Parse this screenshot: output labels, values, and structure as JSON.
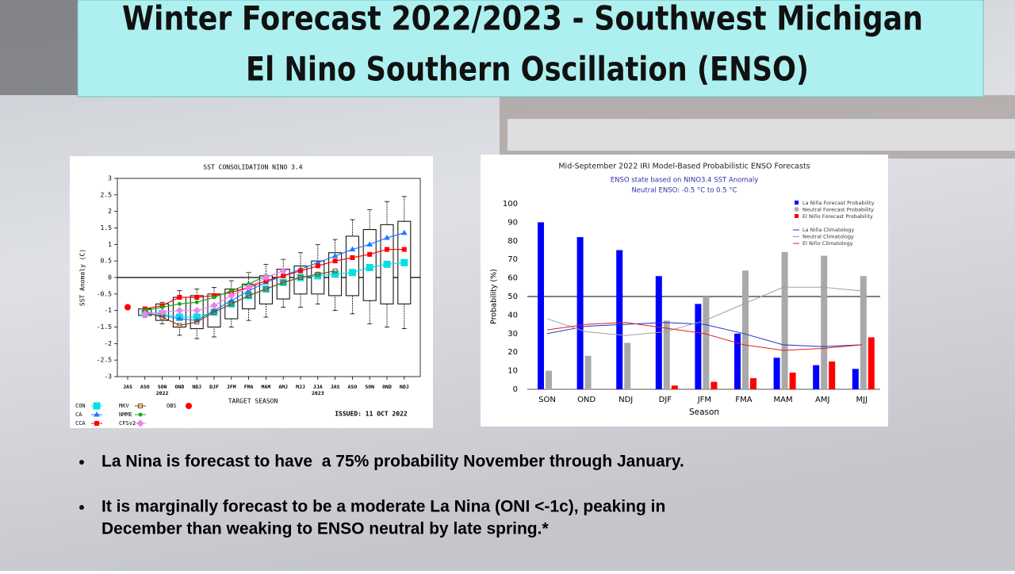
{
  "header": {
    "title_lines": [
      "Winter Forecast 2022/2023 - Southwest Michigan",
      "El Nino Southern Oscillation (ENSO)"
    ]
  },
  "chart_data": [
    {
      "type": "box",
      "title": "SST CONSOLIDATION NINO 3.4",
      "y_label": "SST Anomaly (C)",
      "x_label": "TARGET SEASON",
      "note": "ISSUED: 11 OCT 2022",
      "categories": [
        "JAS",
        "ASO",
        "SON",
        "OND",
        "NDJ",
        "DJF",
        "JFM",
        "FMA",
        "MAM",
        "AMJ",
        "MJJ",
        "JJA",
        "JAS",
        "ASO",
        "SON",
        "OND",
        "NDJ"
      ],
      "year_labels": [
        null,
        null,
        "2022",
        null,
        null,
        null,
        null,
        null,
        null,
        null,
        null,
        "2023",
        null,
        null,
        null,
        null,
        null
      ],
      "ylim": [
        -3,
        3
      ],
      "yticks": [
        -3,
        -2.5,
        -2,
        -1.5,
        -1,
        -0.5,
        0,
        0.5,
        1,
        1.5,
        2,
        2.5,
        3
      ],
      "reference_line": 0,
      "boxes": [
        null,
        {
          "min": -1.2,
          "q1": -1.15,
          "q3": -0.95,
          "max": -0.9
        },
        {
          "min": -1.4,
          "q1": -1.3,
          "q3": -0.8,
          "max": -0.75
        },
        {
          "min": -1.75,
          "q1": -1.5,
          "q3": -0.6,
          "max": -0.4
        },
        {
          "min": -1.85,
          "q1": -1.55,
          "q3": -0.55,
          "max": -0.35
        },
        {
          "min": -1.8,
          "q1": -1.5,
          "q3": -0.5,
          "max": -0.3
        },
        {
          "min": -1.5,
          "q1": -1.25,
          "q3": -0.35,
          "max": -0.1
        },
        {
          "min": -1.3,
          "q1": -0.95,
          "q3": -0.2,
          "max": 0.15
        },
        {
          "min": -1.2,
          "q1": -0.8,
          "q3": 0.05,
          "max": 0.4
        },
        {
          "min": -0.9,
          "q1": -0.65,
          "q3": 0.25,
          "max": 0.55
        },
        {
          "min": -0.9,
          "q1": -0.5,
          "q3": 0.35,
          "max": 0.75
        },
        {
          "min": -0.8,
          "q1": -0.5,
          "q3": 0.5,
          "max": 1.0
        },
        {
          "min": -1.0,
          "q1": -0.55,
          "q3": 0.75,
          "max": 1.15
        },
        {
          "min": -1.1,
          "q1": -0.55,
          "q3": 1.25,
          "max": 1.75
        },
        {
          "min": -1.4,
          "q1": -0.7,
          "q3": 1.45,
          "max": 2.05
        },
        {
          "min": -1.5,
          "q1": -0.8,
          "q3": 1.6,
          "max": 2.3
        },
        {
          "min": -1.55,
          "q1": -0.8,
          "q3": 1.7,
          "max": 2.45
        }
      ],
      "series": [
        {
          "name": "CON",
          "color": "#00e0e0",
          "marker": "bigsquare",
          "values": [
            null,
            -1.05,
            -1.1,
            -1.2,
            -1.2,
            -1.05,
            -0.8,
            -0.55,
            -0.35,
            -0.15,
            0.0,
            0.05,
            0.1,
            0.15,
            0.3,
            0.4,
            0.45
          ]
        },
        {
          "name": "CA",
          "color": "#1e78ff",
          "marker": "triangle",
          "values": [
            null,
            -1.1,
            -1.15,
            -1.25,
            -1.3,
            -1.0,
            -0.7,
            -0.4,
            -0.15,
            0.05,
            0.25,
            0.45,
            0.65,
            0.85,
            1.0,
            1.2,
            1.35
          ]
        },
        {
          "name": "CCA",
          "color": "#ff0000",
          "marker": "square",
          "values": [
            null,
            -0.95,
            -0.85,
            -0.6,
            -0.6,
            -0.55,
            -0.45,
            -0.3,
            -0.1,
            0.05,
            0.2,
            0.35,
            0.5,
            0.6,
            0.7,
            0.85,
            0.85
          ]
        },
        {
          "name": "MKV",
          "color": "#8b4513",
          "marker": "opensquare",
          "values": [
            null,
            -1.05,
            -1.2,
            -1.45,
            -1.35,
            -1.05,
            -0.8,
            -0.55,
            -0.35,
            -0.15,
            0.0,
            0.1,
            0.2,
            null,
            null,
            null,
            null
          ]
        },
        {
          "name": "NMME",
          "color": "#10b010",
          "marker": "circle",
          "values": [
            null,
            -1.0,
            -0.9,
            -0.8,
            -0.75,
            -0.6,
            -0.4,
            -0.2,
            0.05,
            null,
            null,
            null,
            null,
            null,
            null,
            null,
            null
          ]
        },
        {
          "name": "CFSv2",
          "color": "#ee82ee",
          "marker": "diamond",
          "values": [
            null,
            -1.1,
            -1.05,
            -1.0,
            -1.0,
            -0.85,
            -0.55,
            -0.3,
            0.0,
            0.2,
            null,
            null,
            null,
            null,
            null,
            null,
            null
          ]
        },
        {
          "name": "OBS",
          "color": "#ff0000",
          "marker": "dot",
          "values": [
            -0.9,
            null,
            null,
            null,
            null,
            null,
            null,
            null,
            null,
            null,
            null,
            null,
            null,
            null,
            null,
            null,
            null
          ]
        }
      ]
    },
    {
      "type": "bar",
      "title": "Mid-September 2022 IRI Model-Based Probabilistic ENSO Forecasts",
      "subtitle_lines": [
        "ENSO state based on NINO3.4 SST Anomaly",
        "Neutral ENSO: -0.5 °C to 0.5 °C"
      ],
      "x_label": "Season",
      "y_label": "Probability (%)",
      "categories": [
        "SON",
        "OND",
        "NDJ",
        "DJF",
        "JFM",
        "FMA",
        "MAM",
        "AMJ",
        "MJJ"
      ],
      "ylim": [
        0,
        100
      ],
      "yticks": [
        0,
        10,
        20,
        30,
        40,
        50,
        60,
        70,
        80,
        90,
        100
      ],
      "reference_line": 50,
      "series": [
        {
          "name": "La Niña Forecast Probability",
          "color": "#0000ff",
          "values": [
            90,
            82,
            75,
            61,
            46,
            30,
            17,
            13,
            11
          ]
        },
        {
          "name": "Neutral Forecast Probability",
          "color": "#a9a9a9",
          "values": [
            10,
            18,
            25,
            37,
            50,
            64,
            74,
            72,
            61
          ]
        },
        {
          "name": "El Niño Forecast Probability",
          "color": "#ff0000",
          "values": [
            0,
            0,
            0,
            2,
            4,
            6,
            9,
            15,
            28
          ]
        }
      ],
      "lines": [
        {
          "name": "La Niña Climatology",
          "color": "#2030d0",
          "values": [
            30,
            34,
            35,
            36,
            35,
            30,
            24,
            23,
            24
          ]
        },
        {
          "name": "Neutral Climatology",
          "color": "#a0a0a0",
          "values": [
            38,
            31,
            29,
            31,
            37,
            46,
            55,
            55,
            53
          ]
        },
        {
          "name": "El Niño Climatology",
          "color": "#e02020",
          "values": [
            32,
            35,
            36,
            33,
            30,
            24,
            21,
            22,
            24
          ]
        }
      ]
    }
  ],
  "bullets": [
    [
      "La Nina is forecast to have  a 75% probability November through January."
    ],
    [
      "It is marginally forecast to be a moderate La Nina (ONI <-1c), peaking in",
      "December than weaking to ENSO neutral by late spring.*"
    ]
  ]
}
